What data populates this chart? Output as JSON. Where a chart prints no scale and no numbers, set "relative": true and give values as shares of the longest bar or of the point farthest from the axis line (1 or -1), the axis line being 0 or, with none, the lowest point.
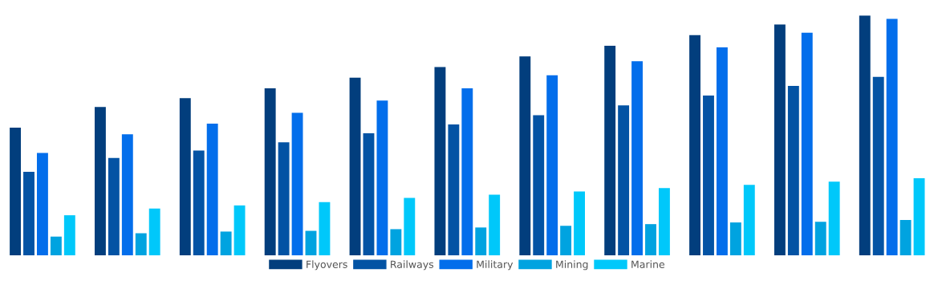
{
  "chart_data": {
    "type": "bar",
    "relative": true,
    "legend": "bottom",
    "grid": false,
    "categories": [
      null,
      null,
      null,
      null,
      null,
      null,
      null,
      null,
      null,
      null,
      null
    ],
    "series": [
      {
        "name": "Flyovers",
        "color": "#023e7d",
        "values": [
          0.532,
          0.618,
          0.655,
          0.696,
          0.741,
          0.785,
          0.829,
          0.874,
          0.918,
          0.962,
          1
        ]
      },
      {
        "name": "Railways",
        "color": "#0353a4",
        "values": [
          0.348,
          0.406,
          0.437,
          0.471,
          0.509,
          0.546,
          0.584,
          0.625,
          0.666,
          0.706,
          0.744
        ]
      },
      {
        "name": "Military",
        "color": "#036eeb",
        "values": [
          0.427,
          0.505,
          0.549,
          0.594,
          0.645,
          0.696,
          0.751,
          0.809,
          0.867,
          0.928,
          0.986
        ]
      },
      {
        "name": "Mining",
        "color": "#00a3e0",
        "values": [
          0.078,
          0.092,
          0.099,
          0.102,
          0.109,
          0.116,
          0.123,
          0.13,
          0.137,
          0.14,
          0.147
        ]
      },
      {
        "name": "Marine",
        "color": "#00c8fa",
        "values": [
          0.167,
          0.195,
          0.208,
          0.222,
          0.239,
          0.253,
          0.266,
          0.28,
          0.294,
          0.307,
          0.321
        ]
      }
    ]
  }
}
